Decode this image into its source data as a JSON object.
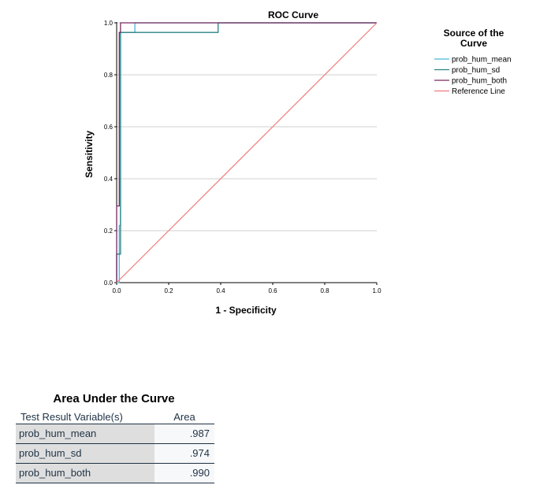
{
  "chart_data": {
    "type": "line",
    "title": "ROC Curve",
    "xlabel": "1 - Specificity",
    "ylabel": "Sensitivity",
    "xlim": [
      0,
      1
    ],
    "ylim": [
      0,
      1
    ],
    "xticks": [
      "0.0",
      "0.2",
      "0.4",
      "0.6",
      "0.8",
      "1.0"
    ],
    "yticks": [
      "0.0",
      "0.2",
      "0.4",
      "0.6",
      "0.8",
      "1.0"
    ],
    "grid": "horizontal",
    "legend_title": "Source of the Curve",
    "legend_position": "right",
    "series": [
      {
        "name": "prob_hum_mean",
        "color": "#4cb3d9",
        "x": [
          0,
          0.01,
          0.01,
          0.015,
          0.015,
          0.07,
          0.07,
          1.0
        ],
        "y": [
          0,
          0,
          0.22,
          0.22,
          0.963,
          0.963,
          1.0,
          1.0
        ]
      },
      {
        "name": "prob_hum_sd",
        "color": "#2a8282",
        "x": [
          0,
          0.0,
          0.015,
          0.015,
          0.39,
          0.39,
          1.0
        ],
        "y": [
          0,
          0.11,
          0.11,
          0.963,
          0.963,
          1.0,
          1.0
        ]
      },
      {
        "name": "prob_hum_both",
        "color": "#7a2960",
        "x": [
          0,
          0.0,
          0.01,
          0.01,
          0.015,
          0.015,
          1.0
        ],
        "y": [
          0,
          0.295,
          0.295,
          0.963,
          0.963,
          1.0,
          1.0
        ]
      },
      {
        "name": "Reference Line",
        "color": "#ef7b7b",
        "x": [
          0,
          1
        ],
        "y": [
          0,
          1
        ]
      }
    ]
  },
  "auc": {
    "title": "Area Under the Curve",
    "col_variable": "Test Result Variable(s)",
    "col_area": "Area",
    "rows": [
      {
        "variable": "prob_hum_mean",
        "area": ".987"
      },
      {
        "variable": "prob_hum_sd",
        "area": ".974"
      },
      {
        "variable": "prob_hum_both",
        "area": ".990"
      }
    ]
  }
}
